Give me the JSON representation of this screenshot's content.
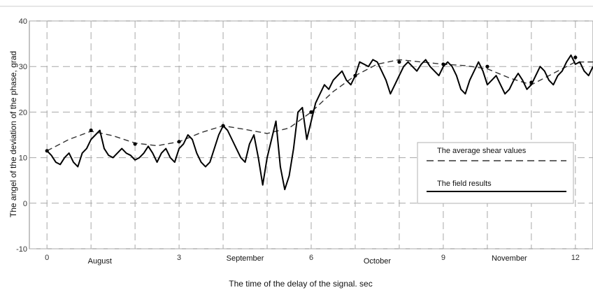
{
  "chart_data": {
    "type": "line",
    "title": "",
    "xlabel": "The time of the delay of the signal. sec",
    "ylabel": "The angel of the deviation of the phase, grad",
    "xlim": [
      -0.4,
      12.4
    ],
    "ylim": [
      -10,
      40
    ],
    "grid": true,
    "legend_position": "right",
    "x_ticks": [
      {
        "x": 0,
        "label": "0"
      },
      {
        "x": 3,
        "label": "3"
      },
      {
        "x": 6,
        "label": "6"
      },
      {
        "x": 9,
        "label": "9"
      },
      {
        "x": 12,
        "label": "12"
      }
    ],
    "y_ticks": [
      {
        "y": -10,
        "label": "-10"
      },
      {
        "y": 0,
        "label": "0"
      },
      {
        "y": 10,
        "label": "10"
      },
      {
        "y": 20,
        "label": "20"
      },
      {
        "y": 30,
        "label": "30"
      },
      {
        "y": 40,
        "label": "40"
      }
    ],
    "month_labels": [
      {
        "x": 1.2,
        "label": "August"
      },
      {
        "x": 4.5,
        "label": "September"
      },
      {
        "x": 7.5,
        "label": "October"
      },
      {
        "x": 10.5,
        "label": "November"
      }
    ],
    "series": [
      {
        "name": "The average shear values",
        "style": "dashed",
        "color": "#333333",
        "x": [
          0,
          0.5,
          1,
          1.5,
          2,
          2.5,
          3,
          3.5,
          4,
          4.5,
          5,
          5.5,
          6,
          6.5,
          7,
          7.5,
          8,
          8.5,
          9,
          9.5,
          10,
          10.5,
          11,
          11.5,
          12,
          12.4
        ],
        "y": [
          11.5,
          14,
          15.8,
          14.8,
          13.2,
          12.6,
          13.5,
          15.5,
          17,
          16.2,
          15.3,
          16.5,
          20,
          24.5,
          28,
          30.5,
          31.5,
          31,
          30.5,
          30.2,
          29.5,
          27.5,
          26,
          28.5,
          31,
          31
        ]
      },
      {
        "name": "The field results",
        "style": "solid",
        "color": "#000000",
        "x": [
          0,
          0.1,
          0.2,
          0.3,
          0.4,
          0.5,
          0.6,
          0.7,
          0.8,
          0.9,
          1.0,
          1.1,
          1.2,
          1.3,
          1.4,
          1.5,
          1.6,
          1.7,
          1.8,
          1.9,
          2.0,
          2.1,
          2.2,
          2.3,
          2.4,
          2.5,
          2.6,
          2.7,
          2.8,
          2.9,
          3.0,
          3.1,
          3.2,
          3.3,
          3.4,
          3.5,
          3.6,
          3.7,
          3.8,
          3.9,
          4.0,
          4.1,
          4.2,
          4.3,
          4.4,
          4.5,
          4.6,
          4.7,
          4.8,
          4.9,
          5.0,
          5.1,
          5.2,
          5.3,
          5.4,
          5.5,
          5.6,
          5.7,
          5.8,
          5.9,
          6.0,
          6.1,
          6.2,
          6.3,
          6.4,
          6.5,
          6.6,
          6.7,
          6.8,
          6.9,
          7.0,
          7.1,
          7.2,
          7.3,
          7.4,
          7.5,
          7.6,
          7.7,
          7.8,
          7.9,
          8.0,
          8.1,
          8.2,
          8.3,
          8.4,
          8.5,
          8.6,
          8.7,
          8.8,
          8.9,
          9.0,
          9.1,
          9.2,
          9.3,
          9.4,
          9.5,
          9.6,
          9.7,
          9.8,
          9.9,
          10.0,
          10.1,
          10.2,
          10.3,
          10.4,
          10.5,
          10.6,
          10.7,
          10.8,
          10.9,
          11.0,
          11.1,
          11.2,
          11.3,
          11.4,
          11.5,
          11.6,
          11.7,
          11.8,
          11.9,
          12.0,
          12.1,
          12.2,
          12.3,
          12.4
        ],
        "y": [
          11.5,
          10.5,
          9,
          8.5,
          10,
          11,
          9,
          8,
          11,
          12,
          14,
          15,
          16,
          12,
          10.5,
          10,
          11,
          12,
          11,
          10.5,
          9.5,
          10,
          11,
          12.5,
          11,
          9,
          11,
          12,
          10,
          9,
          12,
          13,
          15,
          14,
          11,
          9,
          8,
          9,
          12,
          15,
          17,
          16,
          14,
          12,
          10,
          9,
          13,
          15,
          10,
          4,
          10,
          14,
          18,
          8,
          3,
          6,
          12,
          20,
          21,
          14,
          18,
          22,
          24,
          26,
          25,
          27,
          28,
          29,
          27,
          26,
          28,
          31,
          30.5,
          30,
          31.5,
          31,
          29,
          27,
          24,
          26,
          28,
          30,
          31,
          30,
          29,
          30.5,
          31.5,
          30,
          29,
          28,
          30,
          31,
          30,
          28,
          25,
          24,
          27,
          29,
          31,
          29,
          26,
          27,
          28,
          26,
          24,
          25,
          27,
          28.5,
          27,
          25,
          26,
          28,
          30,
          29,
          27,
          26,
          28,
          29,
          31,
          32.5,
          30.5,
          31,
          29,
          28,
          30
        ]
      }
    ],
    "markers": [
      {
        "x": 0,
        "y": 11.5
      },
      {
        "x": 1.0,
        "y": 16
      },
      {
        "x": 2.0,
        "y": 13
      },
      {
        "x": 3.0,
        "y": 13.5
      },
      {
        "x": 4.0,
        "y": 17
      },
      {
        "x": 6.0,
        "y": 20
      },
      {
        "x": 7.0,
        "y": 28
      },
      {
        "x": 8.0,
        "y": 31
      },
      {
        "x": 9.0,
        "y": 30.5
      },
      {
        "x": 10.0,
        "y": 30
      },
      {
        "x": 11.0,
        "y": 26.5
      },
      {
        "x": 12.0,
        "y": 32
      }
    ]
  },
  "legend": {
    "average_label": "The average shear values",
    "field_label": "The field results"
  }
}
